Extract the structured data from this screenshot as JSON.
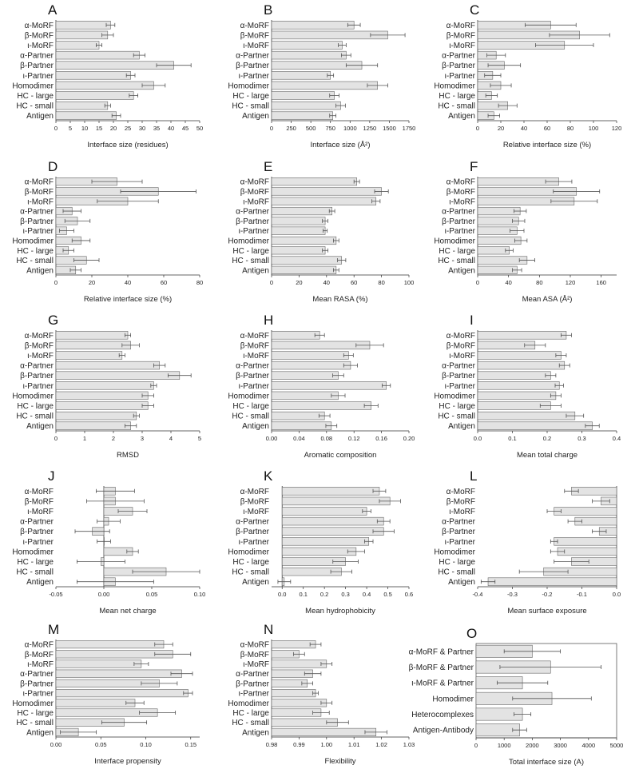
{
  "chart_data": [
    {
      "panel": "A",
      "type": "bar",
      "categories": [
        "α-MoRF",
        "β-MoRF",
        "ι-MoRF",
        "α-Partner",
        "β-Partner",
        "ι-Partner",
        "Homodimer",
        "HC - large",
        "HC - small",
        "Antigen"
      ],
      "values": [
        19,
        18,
        15,
        29,
        41,
        26,
        34,
        27,
        18,
        21
      ],
      "errors": [
        1.5,
        2,
        1,
        2,
        6,
        1.5,
        4,
        1.5,
        1,
        1.5
      ],
      "xlim": [
        0,
        50
      ],
      "xticks": [
        0,
        5,
        10,
        15,
        20,
        25,
        30,
        35,
        40,
        45,
        50
      ],
      "xlabel": "Interface size (residues)"
    },
    {
      "panel": "B",
      "type": "bar",
      "categories": [
        "α-MoRF",
        "β-MoRF",
        "ι-MoRF",
        "α-Partner",
        "β-Partner",
        "ι-Partner",
        "Homodimer",
        "HC - large",
        "HC - small",
        "Antigen"
      ],
      "values": [
        1050,
        1480,
        900,
        950,
        1150,
        750,
        1350,
        800,
        880,
        780
      ],
      "errors": [
        80,
        220,
        50,
        60,
        200,
        40,
        130,
        60,
        60,
        40
      ],
      "xlim": [
        0,
        1750
      ],
      "xticks": [
        0,
        250,
        500,
        750,
        1000,
        1250,
        1500,
        1750
      ],
      "xlabel": "Interface size (Å²)"
    },
    {
      "panel": "C",
      "type": "bar",
      "categories": [
        "α-MoRF",
        "β-MoRF",
        "ι-MoRF",
        "α-Partner",
        "β-Partner",
        "ι-Partner",
        "Homodimer",
        "HC - large",
        "HC - small",
        "Antigen"
      ],
      "values": [
        63,
        88,
        75,
        16,
        23,
        13,
        20,
        12,
        26,
        14
      ],
      "errors": [
        22,
        26,
        25,
        8,
        14,
        7,
        9,
        5,
        8,
        5
      ],
      "xlim": [
        0,
        120
      ],
      "xticks": [
        0,
        20,
        40,
        60,
        80,
        100,
        120
      ],
      "xlabel": "Relative interface size (%)"
    },
    {
      "panel": "D",
      "type": "bar",
      "categories": [
        "α-MoRF",
        "β-MoRF",
        "ι-MoRF",
        "α-Partner",
        "β-Partner",
        "ι-Partner",
        "Homodimer",
        "HC - large",
        "HC - small",
        "Antigen"
      ],
      "values": [
        34,
        57,
        40,
        9,
        12,
        6,
        14,
        7,
        17,
        11
      ],
      "errors": [
        14,
        21,
        17,
        5,
        7,
        4,
        5,
        3,
        7,
        3
      ],
      "xlim": [
        0,
        80
      ],
      "xticks": [
        0,
        20,
        40,
        60,
        80
      ],
      "xlabel": "Relative interface size (%)"
    },
    {
      "panel": "E",
      "type": "bar",
      "categories": [
        "α-MoRF",
        "β-MoRF",
        "ι-MoRF",
        "α-Partner",
        "β-Partner",
        "ι-Partner",
        "Homodimer",
        "HC - large",
        "HC - small",
        "Antigen"
      ],
      "values": [
        62,
        80,
        76,
        44,
        39,
        39,
        47,
        39,
        51,
        47
      ],
      "errors": [
        2,
        5,
        3,
        2,
        2,
        1.5,
        2,
        2,
        3,
        2
      ],
      "xlim": [
        0,
        100
      ],
      "xticks": [
        0,
        20,
        40,
        60,
        80,
        100
      ],
      "xlabel": "Mean RASA (%)"
    },
    {
      "panel": "F",
      "type": "bar",
      "categories": [
        "α-MoRF",
        "β-MoRF",
        "ι-MoRF",
        "α-Partner",
        "β-Partner",
        "ι-Partner",
        "Homodimer",
        "HC - large",
        "HC - small",
        "Antigen"
      ],
      "values": [
        105,
        128,
        125,
        55,
        53,
        51,
        56,
        41,
        64,
        51
      ],
      "errors": [
        17,
        30,
        30,
        8,
        8,
        9,
        8,
        5,
        10,
        6
      ],
      "xlim": [
        0,
        180
      ],
      "xticks": [
        0,
        40,
        80,
        120,
        160
      ],
      "xlabel": "Mean ASA (Å²)"
    },
    {
      "panel": "G",
      "type": "bar",
      "categories": [
        "α-MoRF",
        "β-MoRF",
        "ι-MoRF",
        "α-Partner",
        "β-Partner",
        "ι-Partner",
        "Homodimer",
        "HC - large",
        "HC - small",
        "Antigen"
      ],
      "values": [
        2.5,
        2.6,
        2.3,
        3.6,
        4.3,
        3.4,
        3.2,
        3.2,
        2.8,
        2.6
      ],
      "errors": [
        0.1,
        0.3,
        0.1,
        0.2,
        0.4,
        0.1,
        0.2,
        0.2,
        0.1,
        0.2
      ],
      "xlim": [
        0,
        5
      ],
      "xticks": [
        0,
        1,
        2,
        3,
        4,
        5
      ],
      "xlabel": "RMSD"
    },
    {
      "panel": "H",
      "type": "bar",
      "categories": [
        "α-MoRF",
        "β-MoRF",
        "ι-MoRF",
        "α-Partner",
        "β-Partner",
        "ι-Partner",
        "Homodimer",
        "HC - large",
        "HC - small",
        "Antigen"
      ],
      "values": [
        0.07,
        0.143,
        0.112,
        0.115,
        0.097,
        0.167,
        0.097,
        0.145,
        0.077,
        0.087
      ],
      "errors": [
        0.007,
        0.02,
        0.007,
        0.01,
        0.008,
        0.006,
        0.01,
        0.01,
        0.008,
        0.008
      ],
      "xlim": [
        0,
        0.2
      ],
      "xticks": [
        0,
        0.04,
        0.08,
        0.12,
        0.16,
        0.2
      ],
      "xlabel": "Aromatic composition"
    },
    {
      "panel": "I",
      "type": "bar",
      "categories": [
        "α-MoRF",
        "β-MoRF",
        "ι-MoRF",
        "α-Partner",
        "β-Partner",
        "ι-Partner",
        "Homodimer",
        "HC - large",
        "HC - small",
        "Antigen"
      ],
      "values": [
        0.255,
        0.165,
        0.24,
        0.25,
        0.21,
        0.235,
        0.225,
        0.21,
        0.28,
        0.33
      ],
      "errors": [
        0.015,
        0.03,
        0.015,
        0.015,
        0.015,
        0.012,
        0.015,
        0.03,
        0.025,
        0.02
      ],
      "xlim": [
        0,
        0.4
      ],
      "xticks": [
        0,
        0.1,
        0.2,
        0.3,
        0.4
      ],
      "xlabel": "Mean total charge"
    },
    {
      "panel": "J",
      "type": "bar",
      "categories": [
        "α-MoRF",
        "β-MoRF",
        "ι-MoRF",
        "α-Partner",
        "β-Partner",
        "ι-Partner",
        "Homodimer",
        "HC - large",
        "HC - small",
        "Antigen"
      ],
      "values": [
        0.012,
        0.012,
        0.03,
        0.005,
        -0.012,
        0,
        0.03,
        -0.003,
        0.065,
        0.012
      ],
      "errors": [
        0.02,
        0.03,
        0.015,
        0.012,
        0.018,
        0.007,
        0.006,
        0.025,
        0.035,
        0.04
      ],
      "xlim": [
        -0.05,
        0.1
      ],
      "xticks": [
        -0.05,
        0,
        0.05,
        0.1
      ],
      "xlabel": "Mean net charge"
    },
    {
      "panel": "K",
      "type": "bar",
      "categories": [
        "α-MoRF",
        "β-MoRF",
        "ι-MoRF",
        "α-Partner",
        "β-Partner",
        "ι-Partner",
        "Homodimer",
        "HC - large",
        "HC - small",
        "Antigen"
      ],
      "values": [
        0.46,
        0.51,
        0.4,
        0.48,
        0.48,
        0.41,
        0.35,
        0.3,
        0.28,
        0.01
      ],
      "errors": [
        0.03,
        0.05,
        0.02,
        0.03,
        0.05,
        0.02,
        0.04,
        0.06,
        0.05,
        0.03
      ],
      "xlim": [
        -0.05,
        0.6
      ],
      "xticks": [
        0,
        0.1,
        0.2,
        0.3,
        0.4,
        0.5,
        0.6
      ],
      "xlabel": "Mean hydrophobicity"
    },
    {
      "panel": "L",
      "type": "bar",
      "categories": [
        "α-MoRF",
        "β-MoRF",
        "ι-MoRF",
        "α-Partner",
        "β-Partner",
        "ι-Partner",
        "Homodimer",
        "HC - large",
        "HC - small",
        "Antigen"
      ],
      "values": [
        -0.13,
        -0.045,
        -0.18,
        -0.12,
        -0.05,
        -0.18,
        -0.17,
        -0.13,
        -0.21,
        -0.37
      ],
      "errors": [
        0.02,
        0.025,
        0.02,
        0.02,
        0.02,
        0.01,
        0.02,
        0.05,
        0.07,
        0.02
      ],
      "xlim": [
        -0.4,
        0
      ],
      "xticks": [
        -0.4,
        -0.3,
        -0.2,
        -0.1,
        0
      ],
      "xlabel": "Mean surface exposure"
    },
    {
      "panel": "M",
      "type": "bar",
      "categories": [
        "α-MoRF",
        "β-MoRF",
        "ι-MoRF",
        "α-Partner",
        "β-Partner",
        "ι-Partner",
        "Homodimer",
        "HC - large",
        "HC - small",
        "Antigen"
      ],
      "values": [
        0.12,
        0.13,
        0.095,
        0.14,
        0.115,
        0.147,
        0.088,
        0.113,
        0.076,
        0.025
      ],
      "errors": [
        0.01,
        0.02,
        0.008,
        0.012,
        0.02,
        0.005,
        0.01,
        0.02,
        0.025,
        0.02
      ],
      "xlim": [
        0,
        0.16
      ],
      "xticks": [
        0,
        0.05,
        0.1,
        0.15
      ],
      "xlabel": "Interface propensity"
    },
    {
      "panel": "N",
      "type": "bar",
      "categories": [
        "α-MoRF",
        "β-MoRF",
        "ι-MoRF",
        "α-Partner",
        "β-Partner",
        "ι-Partner",
        "Homodimer",
        "HC - large",
        "HC - small",
        "Antigen"
      ],
      "values": [
        0.996,
        0.99,
        1.0,
        0.995,
        0.993,
        0.996,
        1.0,
        0.998,
        1.004,
        1.018
      ],
      "errors": [
        0.002,
        0.002,
        0.002,
        0.003,
        0.002,
        0.001,
        0.002,
        0.003,
        0.004,
        0.004
      ],
      "xlim": [
        0.98,
        1.03
      ],
      "xticks": [
        0.98,
        0.99,
        1.0,
        1.01,
        1.02,
        1.03
      ],
      "xlabel": "Flexibility"
    },
    {
      "panel": "O",
      "type": "bar",
      "categories": [
        "α-MoRF & Partner",
        "β-MoRF & Partner",
        "ι-MoRF & Partner",
        "Homodimer",
        "Heterocomplexes",
        "Antigen-Antibody"
      ],
      "values": [
        2000,
        2650,
        1650,
        2700,
        1650,
        1550
      ],
      "errors": [
        1000,
        1800,
        900,
        1400,
        300,
        250
      ],
      "xlim": [
        0,
        5000
      ],
      "xticks": [
        0,
        1000,
        2000,
        3000,
        4000,
        5000
      ],
      "xlabel": "Total interface size (A)"
    }
  ]
}
